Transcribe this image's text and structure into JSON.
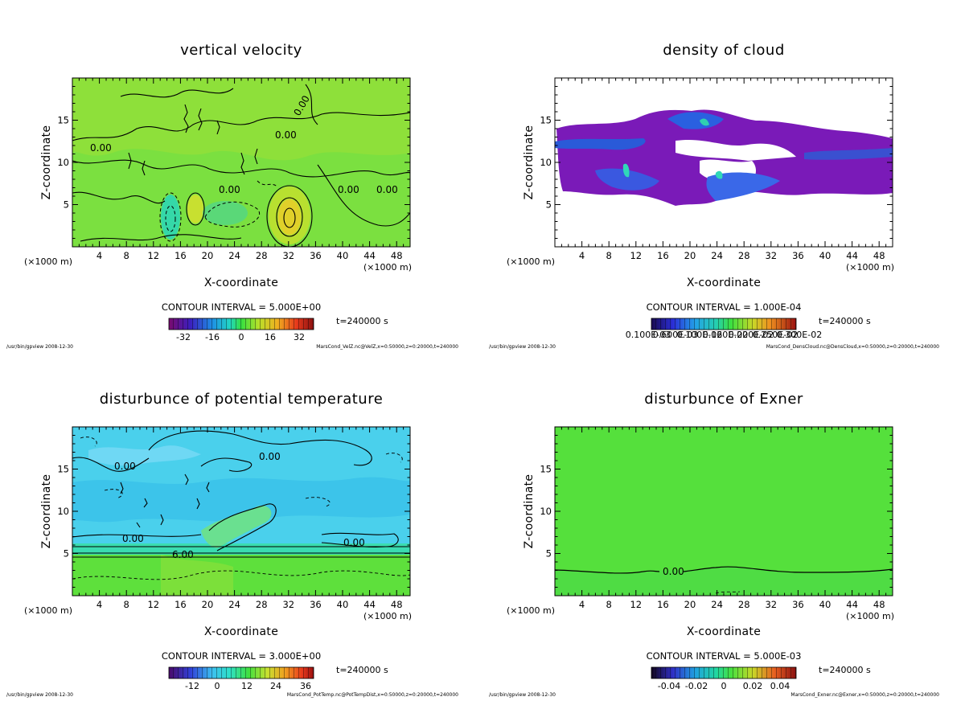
{
  "chart_data": [
    {
      "type": "heatmap",
      "title": "vertical velocity",
      "xlabel": "X-coordinate",
      "ylabel": "Z-coordinate",
      "x_unit": "(×1000 m)",
      "x_ticks": [
        "4",
        "8",
        "12",
        "16",
        "20",
        "24",
        "28",
        "32",
        "36",
        "40",
        "44",
        "48"
      ],
      "y_ticks": [
        "5",
        "10",
        "15"
      ],
      "xlim": [
        0,
        50
      ],
      "ylim": [
        0,
        20
      ],
      "contour_interval": "CONTOUR INTERVAL = 5.000E+00",
      "time": "t=240000 s",
      "colorbar_labels": [
        "-32",
        "-16",
        "0",
        "16",
        "32"
      ],
      "contour_labels": [
        "0.00",
        "0.00",
        "0.00",
        "0.00",
        "0.00",
        "0.00"
      ],
      "footer_left": "/usr/bin/gpview  2008-12-30",
      "footer_right": "MarsCond_VelZ.nc@VelZ,x=0:50000,z=0:20000,t=240000"
    },
    {
      "type": "heatmap",
      "title": "density of cloud",
      "xlabel": "X-coordinate",
      "ylabel": "Z-coordinate",
      "x_unit": "(×1000 m)",
      "x_ticks": [
        "4",
        "8",
        "12",
        "16",
        "20",
        "24",
        "28",
        "32",
        "36",
        "40",
        "44",
        "48"
      ],
      "y_ticks": [
        "5",
        "10",
        "15"
      ],
      "xlim": [
        0,
        50
      ],
      "ylim": [
        0,
        20
      ],
      "contour_interval": "CONTOUR INTERVAL = 1.000E-04",
      "time": "t=240000 s",
      "colorbar_labels": [
        "0.100E-03",
        "0.600E-03",
        "0.100E-02",
        "0.160E-02",
        "0.200E-02",
        "0.250E-02",
        "0.300E-02"
      ],
      "contour_labels": [],
      "footer_left": "/usr/bin/gpview  2008-12-30",
      "footer_right": "MarsCond_DensCloud.nc@DensCloud,x=0:50000,z=0:20000,t=240000"
    },
    {
      "type": "heatmap",
      "title": "disturbunce of potential temperature",
      "xlabel": "X-coordinate",
      "ylabel": "Z-coordinate",
      "x_unit": "(×1000 m)",
      "x_ticks": [
        "4",
        "8",
        "12",
        "16",
        "20",
        "24",
        "28",
        "32",
        "36",
        "40",
        "44",
        "48"
      ],
      "y_ticks": [
        "5",
        "10",
        "15"
      ],
      "xlim": [
        0,
        50
      ],
      "ylim": [
        0,
        20
      ],
      "contour_interval": "CONTOUR INTERVAL = 3.000E+00",
      "time": "t=240000 s",
      "colorbar_labels": [
        "-12",
        "0",
        "12",
        "24",
        "36"
      ],
      "contour_labels": [
        "0.00",
        "0.00",
        "0.00",
        "0.00",
        "6.00"
      ],
      "footer_left": "/usr/bin/gpview  2008-12-30",
      "footer_right": "MarsCond_PotTemp.nc@PotTempDist,x=0:50000,z=0:20000,t=240000"
    },
    {
      "type": "heatmap",
      "title": "disturbunce of Exner",
      "xlabel": "X-coordinate",
      "ylabel": "Z-coordinate",
      "x_unit": "(×1000 m)",
      "x_ticks": [
        "4",
        "8",
        "12",
        "16",
        "20",
        "24",
        "28",
        "32",
        "36",
        "40",
        "44",
        "48"
      ],
      "y_ticks": [
        "5",
        "10",
        "15"
      ],
      "xlim": [
        0,
        50
      ],
      "ylim": [
        0,
        20
      ],
      "contour_interval": "CONTOUR INTERVAL = 5.000E-03",
      "time": "t=240000 s",
      "colorbar_labels": [
        "-0.04",
        "-0.02",
        "0",
        "0.02",
        "0.04"
      ],
      "contour_labels": [
        "0.00"
      ],
      "footer_left": "/usr/bin/gpview  2008-12-30",
      "footer_right": "MarsCond_Exner.nc@Exner,x=0:50000,z=0:20000,t=240000"
    }
  ]
}
